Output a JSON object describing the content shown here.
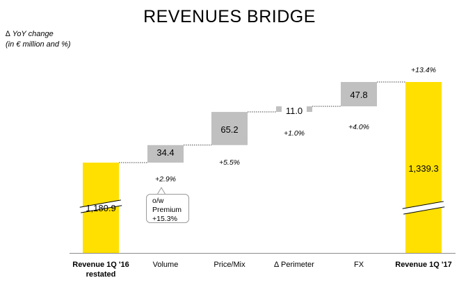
{
  "title": "REVENUES BRIDGE",
  "subtitle_lines": [
    "∆ YoY change",
    "(in € million and %)"
  ],
  "colors": {
    "total": "#FFE000",
    "step": "#C0C0C0",
    "axis": "#8a8a8a",
    "connector": "#404040"
  },
  "callout": {
    "lines": [
      "o/w",
      "Premium",
      "+15.3%"
    ]
  },
  "chart_data": {
    "type": "bar",
    "subtype": "waterfall",
    "title": "REVENUES BRIDGE",
    "categories": [
      "Revenue 1Q '16 restated",
      "Volume",
      "Price/Mix",
      "∆ Perimeter",
      "FX",
      "Revenue 1Q '17"
    ],
    "category_labels": [
      [
        "Revenue 1Q '16",
        "restated"
      ],
      [
        "Volume"
      ],
      [
        "Price/Mix"
      ],
      [
        "∆ Perimeter"
      ],
      [
        "FX"
      ],
      [
        "Revenue 1Q '17"
      ]
    ],
    "category_bold": [
      true,
      false,
      false,
      false,
      false,
      true
    ],
    "kinds": [
      "total",
      "delta",
      "delta",
      "delta",
      "delta",
      "total"
    ],
    "values": [
      1180.9,
      34.4,
      65.2,
      11.0,
      47.8,
      1339.3
    ],
    "value_labels": [
      "1,180.9",
      "34.4",
      "65.2",
      "11.0",
      "47.8",
      "1,339.3"
    ],
    "pct_labels": [
      "",
      "+2.9%",
      "+5.5%",
      "+1.0%",
      "+4.0%",
      "+13.4%"
    ],
    "axis_break": true,
    "ylabel": "",
    "xlabel": ""
  }
}
